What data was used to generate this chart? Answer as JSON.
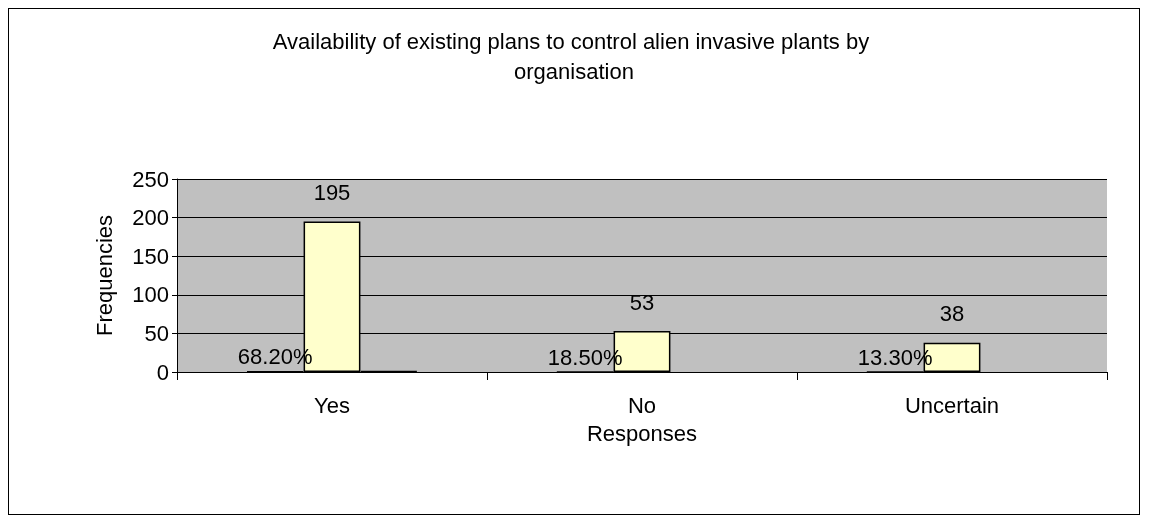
{
  "chart_data": {
    "type": "bar",
    "title": "Availability of existing plans to control alien invasive plants by organisation",
    "xlabel": "Responses",
    "ylabel": "Frequencies",
    "categories": [
      "Yes",
      "No",
      "Uncertain"
    ],
    "series": [
      {
        "color": "#000000",
        "values": [
          0.682,
          0.185,
          0.133
        ],
        "value_labels": [
          "68.20%",
          "18.50%",
          "13.30%"
        ]
      },
      {
        "color": "#ffffcc",
        "values": [
          195,
          53,
          38
        ],
        "value_labels": [
          "195",
          "53",
          "38"
        ]
      },
      {
        "color": "#000000",
        "values": [
          1,
          null,
          null
        ]
      }
    ],
    "ylim": [
      0,
      250
    ],
    "yticks": [
      0,
      50,
      100,
      150,
      200,
      250
    ],
    "grid": "y"
  }
}
